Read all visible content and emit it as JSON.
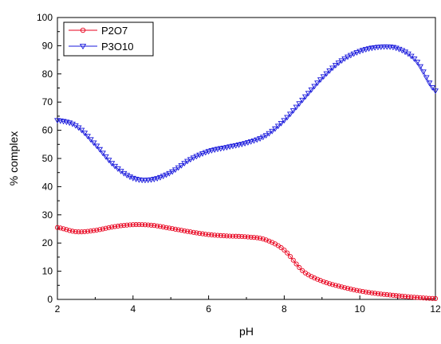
{
  "chart_data": {
    "type": "scatter",
    "xlabel": "pH",
    "ylabel": "% complex",
    "xlim": [
      2,
      12
    ],
    "ylim": [
      0,
      100
    ],
    "xticks": [
      2,
      4,
      6,
      8,
      10,
      12
    ],
    "yticks": [
      0,
      10,
      20,
      30,
      40,
      50,
      60,
      70,
      80,
      90,
      100
    ],
    "xtick_labels": [
      "2",
      "4",
      "6",
      "8",
      "10",
      "12"
    ],
    "ytick_labels": [
      "0",
      "10",
      "20",
      "30",
      "40",
      "50",
      "60",
      "70",
      "80",
      "90",
      "100"
    ],
    "grid": false,
    "legend_position": "top-left",
    "series": [
      {
        "name": "P2O7",
        "color": "#e8001c",
        "marker": "circle",
        "x": [
          2.0,
          2.5,
          3.0,
          3.5,
          4.0,
          4.5,
          5.0,
          5.5,
          6.0,
          6.5,
          7.0,
          7.5,
          8.0,
          8.5,
          9.0,
          9.5,
          10.0,
          10.5,
          11.0,
          11.5,
          12.0
        ],
        "y": [
          25.5,
          24.0,
          24.5,
          25.8,
          26.5,
          26.3,
          25.2,
          24.0,
          23.0,
          22.5,
          22.2,
          21.2,
          17.5,
          10.0,
          6.5,
          4.5,
          3.0,
          2.0,
          1.3,
          0.7,
          0.3
        ]
      },
      {
        "name": "P3O10",
        "color": "#1a1adc",
        "marker": "triangle-down",
        "x": [
          2.0,
          2.5,
          3.0,
          3.5,
          4.0,
          4.5,
          5.0,
          5.5,
          6.0,
          6.5,
          7.0,
          7.5,
          8.0,
          8.5,
          9.0,
          9.5,
          10.0,
          10.5,
          11.0,
          11.5,
          12.0
        ],
        "y": [
          63.5,
          61.5,
          55.0,
          47.5,
          43.0,
          42.5,
          45.0,
          49.5,
          52.5,
          54.0,
          55.5,
          58.0,
          63.5,
          71.0,
          78.5,
          84.5,
          88.0,
          89.5,
          89.0,
          84.5,
          74.0
        ]
      }
    ]
  }
}
